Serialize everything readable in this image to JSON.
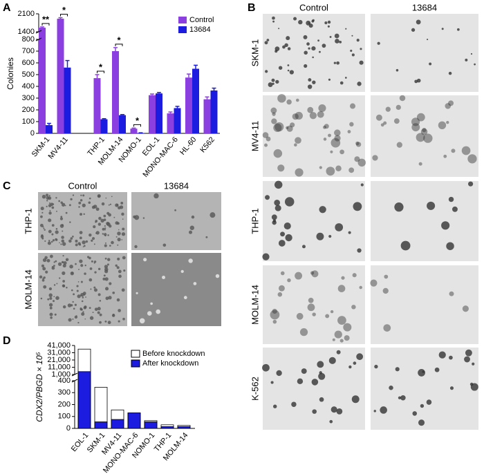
{
  "panels": {
    "a": "A",
    "b": "B",
    "c": "C",
    "d": "D"
  },
  "chart_data": [
    {
      "type": "bar",
      "barmode": "group",
      "ylabel": "Colonies",
      "categories": [
        "SKM-1",
        "MV4-11",
        "THP-1",
        "MOLM-14",
        "NOMO-1",
        "EOL-1",
        "MONO-MAC-6",
        "HL-60",
        "K562"
      ],
      "series": [
        {
          "name": "Control",
          "color": "#8b3fe0",
          "values": [
            1560,
            1910,
            470,
            700,
            40,
            325,
            170,
            475,
            290
          ],
          "errors": [
            30,
            40,
            30,
            30,
            5,
            10,
            12,
            30,
            20
          ]
        },
        {
          "name": "13684",
          "color": "#1c1ce0",
          "values": [
            70,
            560,
            120,
            155,
            3,
            340,
            215,
            550,
            365
          ],
          "errors": [
            15,
            60,
            5,
            5,
            2,
            8,
            15,
            30,
            20
          ]
        }
      ],
      "ylim": [
        0,
        2100
      ],
      "axis_break": [
        800,
        1400
      ],
      "yticks": [
        0,
        100,
        200,
        300,
        400,
        500,
        600,
        700,
        800,
        1400,
        2100
      ],
      "legend": "upper right",
      "annotations": [
        {
          "text": "**",
          "category": "SKM-1"
        },
        {
          "text": "*",
          "category": "MV4-11"
        },
        {
          "text": "*",
          "category": "THP-1"
        },
        {
          "text": "*",
          "category": "MOLM-14"
        },
        {
          "text": "*",
          "category": "NOMO-1"
        }
      ]
    },
    {
      "type": "bar",
      "barmode": "overlay",
      "ylabel": "CDX2/PBGD × 10⁵",
      "categories": [
        "EOL-1",
        "SKM-1",
        "MV4-11",
        "MONO-MAC-6",
        "NOMO-1",
        "THP-1",
        "MOLM-14"
      ],
      "series": [
        {
          "name": "Before knockdown",
          "color": "#ffffff",
          "values": [
            36000,
            345,
            155,
            130,
            65,
            30,
            25
          ]
        },
        {
          "name": "After knockdown",
          "color": "#1c1ce0",
          "values": [
            5000,
            55,
            75,
            130,
            55,
            15,
            15
          ]
        }
      ],
      "ylim": [
        0,
        41000
      ],
      "axis_break": [
        400,
        1000
      ],
      "yticks": [
        0,
        100,
        200,
        300,
        400,
        {
          "value": 1000,
          "label": "1,000"
        },
        {
          "value": 11000,
          "label": "11,000"
        },
        {
          "value": 21000,
          "label": "21,000"
        },
        {
          "value": 31000,
          "label": "31,000"
        },
        {
          "value": 41000,
          "label": "41,000"
        }
      ],
      "legend": "upper right"
    }
  ],
  "image_grid_b": {
    "columns": [
      "Control",
      "13684"
    ],
    "rows": [
      "SKM-1",
      "MV4-11",
      "THP-1",
      "MOLM-14",
      "K-562"
    ]
  },
  "image_grid_c": {
    "columns": [
      "Control",
      "13684"
    ],
    "rows": [
      "THP-1",
      "MOLM-14"
    ]
  }
}
